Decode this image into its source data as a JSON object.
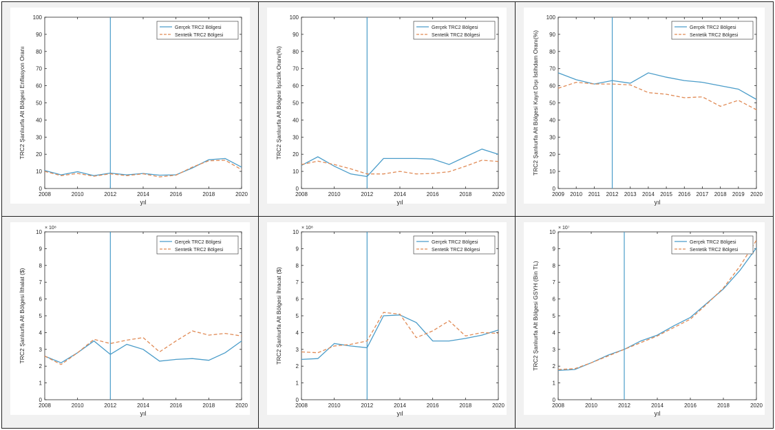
{
  "colors": {
    "real": "#4a9cc9",
    "synthetic": "#e08a55",
    "intervention_line": "#4a9cc9",
    "axes": "#262626",
    "cell_background": "#f1f1f1",
    "plot_background": "#ffffff"
  },
  "chart_data": [
    {
      "type": "line",
      "xlabel": "yıl",
      "ylabel": "TRC2 Şanlıurfa Alt Bölgesi Enflasyon Oranı",
      "xlim": [
        2008,
        2020
      ],
      "ylim": [
        0,
        100
      ],
      "xticks": [
        2008,
        2010,
        2012,
        2014,
        2016,
        2018,
        2020
      ],
      "yticks": [
        0,
        10,
        20,
        30,
        40,
        50,
        60,
        70,
        80,
        90,
        100
      ],
      "exponent_label": "",
      "intervention_x": 2012,
      "legend_position": "top-right",
      "x": [
        2008,
        2009,
        2010,
        2011,
        2012,
        2013,
        2014,
        2015,
        2016,
        2017,
        2018,
        2019,
        2020
      ],
      "series": [
        {
          "name": "Gerçek TRC2 Bölgesi",
          "style": "solid",
          "values": [
            10.5,
            8.0,
            9.8,
            7.5,
            9.0,
            8.0,
            8.8,
            7.8,
            8.0,
            12.0,
            16.8,
            17.5,
            12.5
          ]
        },
        {
          "name": "Sentetik TRC2 Bölgesi",
          "style": "dashed",
          "values": [
            10.0,
            7.5,
            8.8,
            7.2,
            8.6,
            7.5,
            8.6,
            6.8,
            7.8,
            12.5,
            16.2,
            16.5,
            11.0
          ]
        }
      ]
    },
    {
      "type": "line",
      "xlabel": "yıl",
      "ylabel": "TRC2 Şanlıurfa Alt Bölgesi İşsizlik Oranı(%)",
      "xlim": [
        2008,
        2020
      ],
      "ylim": [
        0,
        100
      ],
      "xticks": [
        2008,
        2010,
        2012,
        2014,
        2016,
        2018,
        2020
      ],
      "yticks": [
        0,
        10,
        20,
        30,
        40,
        50,
        60,
        70,
        80,
        90,
        100
      ],
      "exponent_label": "",
      "intervention_x": 2012,
      "legend_position": "top-right",
      "x": [
        2008,
        2009,
        2010,
        2011,
        2012,
        2013,
        2014,
        2015,
        2016,
        2017,
        2018,
        2019,
        2020
      ],
      "series": [
        {
          "name": "Gerçek TRC2 Bölgesi",
          "style": "solid",
          "values": [
            13.5,
            18.5,
            13.0,
            8.5,
            7.0,
            17.5,
            17.5,
            17.5,
            17.2,
            14.0,
            18.5,
            23.0,
            20.0
          ]
        },
        {
          "name": "Sentetik TRC2 Bölgesi",
          "style": "dashed",
          "values": [
            14.0,
            16.0,
            14.0,
            11.5,
            8.5,
            8.5,
            10.0,
            8.5,
            8.8,
            9.8,
            13.0,
            16.5,
            15.8
          ]
        }
      ]
    },
    {
      "type": "line",
      "xlabel": "yıl",
      "ylabel": "TRC2 Şanlıurfa Alt Bölgesi Kayıt Dışı İstihdam Oranı(%)",
      "xlim": [
        2009,
        2020
      ],
      "ylim": [
        0,
        100
      ],
      "xticks": [
        2009,
        2010,
        2011,
        2012,
        2013,
        2014,
        2015,
        2016,
        2017,
        2018,
        2019,
        2020
      ],
      "yticks": [
        0,
        10,
        20,
        30,
        40,
        50,
        60,
        70,
        80,
        90,
        100
      ],
      "exponent_label": "",
      "intervention_x": 2012,
      "legend_position": "top-right",
      "x": [
        2009,
        2010,
        2011,
        2012,
        2013,
        2014,
        2015,
        2016,
        2017,
        2018,
        2019,
        2020
      ],
      "series": [
        {
          "name": "Gerçek TRC2 Bölgesi",
          "style": "solid",
          "values": [
            67.5,
            63.5,
            61.0,
            63.0,
            61.5,
            67.5,
            65.0,
            63.0,
            62.0,
            60.0,
            58.0,
            52.0
          ]
        },
        {
          "name": "Sentetik TRC2 Bölgesi",
          "style": "dashed",
          "values": [
            58.5,
            62.0,
            61.0,
            61.0,
            60.5,
            56.0,
            55.0,
            53.0,
            53.5,
            48.0,
            51.5,
            46.0
          ]
        }
      ]
    },
    {
      "type": "line",
      "xlabel": "yıl",
      "ylabel": "TRC2 Şanlıurfa Alt Bölgesi İthalat ($)",
      "xlim": [
        2008,
        2020
      ],
      "ylim": [
        0,
        10
      ],
      "xticks": [
        2008,
        2010,
        2012,
        2014,
        2016,
        2018,
        2020
      ],
      "yticks": [
        0,
        1,
        2,
        3,
        4,
        5,
        6,
        7,
        8,
        9,
        10
      ],
      "exponent_label": "× 10⁸",
      "intervention_x": 2012,
      "legend_position": "top-right",
      "x": [
        2008,
        2009,
        2010,
        2011,
        2012,
        2013,
        2014,
        2015,
        2016,
        2017,
        2018,
        2019,
        2020
      ],
      "series": [
        {
          "name": "Gerçek TRC2 Bölgesi",
          "style": "solid",
          "values": [
            2.6,
            2.2,
            2.8,
            3.5,
            2.7,
            3.3,
            3.0,
            2.3,
            2.4,
            2.45,
            2.35,
            2.8,
            3.5
          ]
        },
        {
          "name": "Sentetik TRC2 Bölgesi",
          "style": "dashed",
          "values": [
            2.6,
            2.1,
            2.8,
            3.6,
            3.35,
            3.55,
            3.7,
            2.85,
            3.5,
            4.1,
            3.85,
            3.95,
            3.8
          ]
        }
      ]
    },
    {
      "type": "line",
      "xlabel": "yıl",
      "ylabel": "TRC2 Şanlıurfa Alt Bölgesi İhracat ($)",
      "xlim": [
        2008,
        2020
      ],
      "ylim": [
        0,
        10
      ],
      "xticks": [
        2008,
        2010,
        2012,
        2014,
        2016,
        2018,
        2020
      ],
      "yticks": [
        0,
        1,
        2,
        3,
        4,
        5,
        6,
        7,
        8,
        9,
        10
      ],
      "exponent_label": "× 10⁸",
      "intervention_x": 2012,
      "legend_position": "top-right",
      "x": [
        2008,
        2009,
        2010,
        2011,
        2012,
        2013,
        2014,
        2015,
        2016,
        2017,
        2018,
        2019,
        2020
      ],
      "series": [
        {
          "name": "Gerçek TRC2 Bölgesi",
          "style": "solid",
          "values": [
            2.4,
            2.45,
            3.35,
            3.2,
            3.1,
            5.0,
            5.05,
            4.6,
            3.5,
            3.5,
            3.65,
            3.85,
            4.15
          ]
        },
        {
          "name": "Sentetik TRC2 Bölgesi",
          "style": "dashed",
          "values": [
            2.85,
            2.8,
            3.2,
            3.3,
            3.5,
            5.2,
            5.1,
            3.7,
            4.1,
            4.7,
            3.8,
            4.0,
            3.95
          ]
        }
      ]
    },
    {
      "type": "line",
      "xlabel": "yıl",
      "ylabel": "TRC2 Şanlıurfa Alt Bölgesi GSYH (Bin TL)",
      "xlim": [
        2008,
        2020
      ],
      "ylim": [
        0,
        10
      ],
      "xticks": [
        2008,
        2010,
        2012,
        2014,
        2016,
        2018,
        2020
      ],
      "yticks": [
        0,
        1,
        2,
        3,
        4,
        5,
        6,
        7,
        8,
        9,
        10
      ],
      "exponent_label": "× 10⁷",
      "intervention_x": 2012,
      "legend_position": "top-right",
      "x": [
        2008,
        2009,
        2010,
        2011,
        2012,
        2013,
        2014,
        2015,
        2016,
        2017,
        2018,
        2019,
        2020
      ],
      "series": [
        {
          "name": "Gerçek TRC2 Bölgesi",
          "style": "solid",
          "values": [
            1.75,
            1.8,
            2.2,
            2.65,
            3.0,
            3.5,
            3.85,
            4.4,
            4.9,
            5.75,
            6.6,
            7.7,
            9.05
          ]
        },
        {
          "name": "Sentetik TRC2 Bölgesi",
          "style": "dashed",
          "values": [
            1.8,
            1.85,
            2.2,
            2.6,
            3.0,
            3.4,
            3.8,
            4.3,
            4.8,
            5.7,
            6.65,
            7.95,
            9.5
          ]
        }
      ]
    }
  ]
}
